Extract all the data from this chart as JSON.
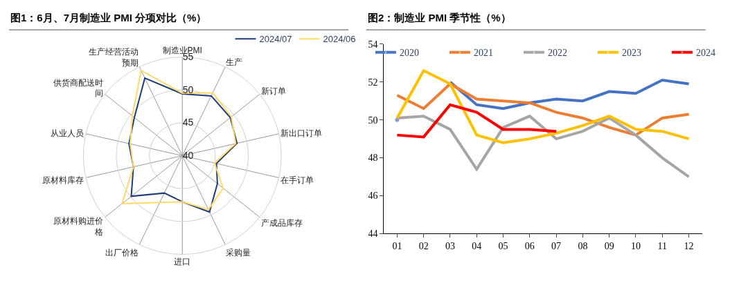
{
  "chart_data": [
    {
      "type": "radar",
      "title": "图1：6月、7月制造业 PMI 分项对比（%）",
      "categories": [
        "制造业PMI",
        "生产",
        "新订单",
        "新出口订单",
        "在手订单",
        "产成品库存",
        "采购量",
        "进口",
        "出厂价格",
        "原材料购进价格",
        "原材料库存",
        "从业人员",
        "供货商配送时间",
        "生产经营活动预期"
      ],
      "series": [
        {
          "name": "2024/07",
          "color": "#1f3a7a",
          "values": [
            49.4,
            50.1,
            49.3,
            48.5,
            45.3,
            46.8,
            49.5,
            47.0,
            46.3,
            49.9,
            47.6,
            48.3,
            49.3,
            53.1
          ]
        },
        {
          "name": "2024/06",
          "color": "#ffd966",
          "values": [
            49.5,
            50.6,
            49.5,
            48.3,
            45.0,
            47.9,
            49.1,
            47.0,
            47.9,
            51.7,
            47.6,
            48.1,
            49.7,
            54.4
          ]
        }
      ],
      "ylim": [
        40,
        55
      ],
      "yticks": [
        40,
        45,
        50,
        55
      ],
      "grid": true,
      "legend": "top right",
      "marker": "none"
    },
    {
      "type": "line",
      "title": "图2：制造业 PMI 季节性（%）",
      "categories": [
        "01",
        "02",
        "03",
        "04",
        "05",
        "06",
        "07",
        "08",
        "09",
        "10",
        "11",
        "12"
      ],
      "series": [
        {
          "name": "2020",
          "color": "#4472c4",
          "values": [
            50.0,
            null,
            52.0,
            50.8,
            50.6,
            50.9,
            51.1,
            51.0,
            51.5,
            51.4,
            52.1,
            51.9
          ]
        },
        {
          "name": "2021",
          "color": "#ed7d31",
          "values": [
            51.3,
            50.6,
            51.9,
            51.1,
            51.0,
            50.9,
            50.4,
            50.1,
            49.6,
            49.2,
            50.1,
            50.3
          ]
        },
        {
          "name": "2022",
          "color": "#a5a5a5",
          "values": [
            50.1,
            50.2,
            49.5,
            47.4,
            49.6,
            50.2,
            49.0,
            49.4,
            50.1,
            49.2,
            48.0,
            47.0
          ]
        },
        {
          "name": "2023",
          "color": "#ffc000",
          "values": [
            50.1,
            52.6,
            51.9,
            49.2,
            48.8,
            49.0,
            49.3,
            49.7,
            50.2,
            49.5,
            49.4,
            49.0
          ]
        },
        {
          "name": "2024",
          "color": "#ff0000",
          "values": [
            49.2,
            49.1,
            50.8,
            50.4,
            49.5,
            49.5,
            49.4,
            null,
            null,
            null,
            null,
            null
          ]
        }
      ],
      "ylim": [
        44,
        54
      ],
      "yticks": [
        44,
        46,
        48,
        50,
        52,
        54
      ],
      "grid": false,
      "legend": "top",
      "marker": "none"
    }
  ]
}
